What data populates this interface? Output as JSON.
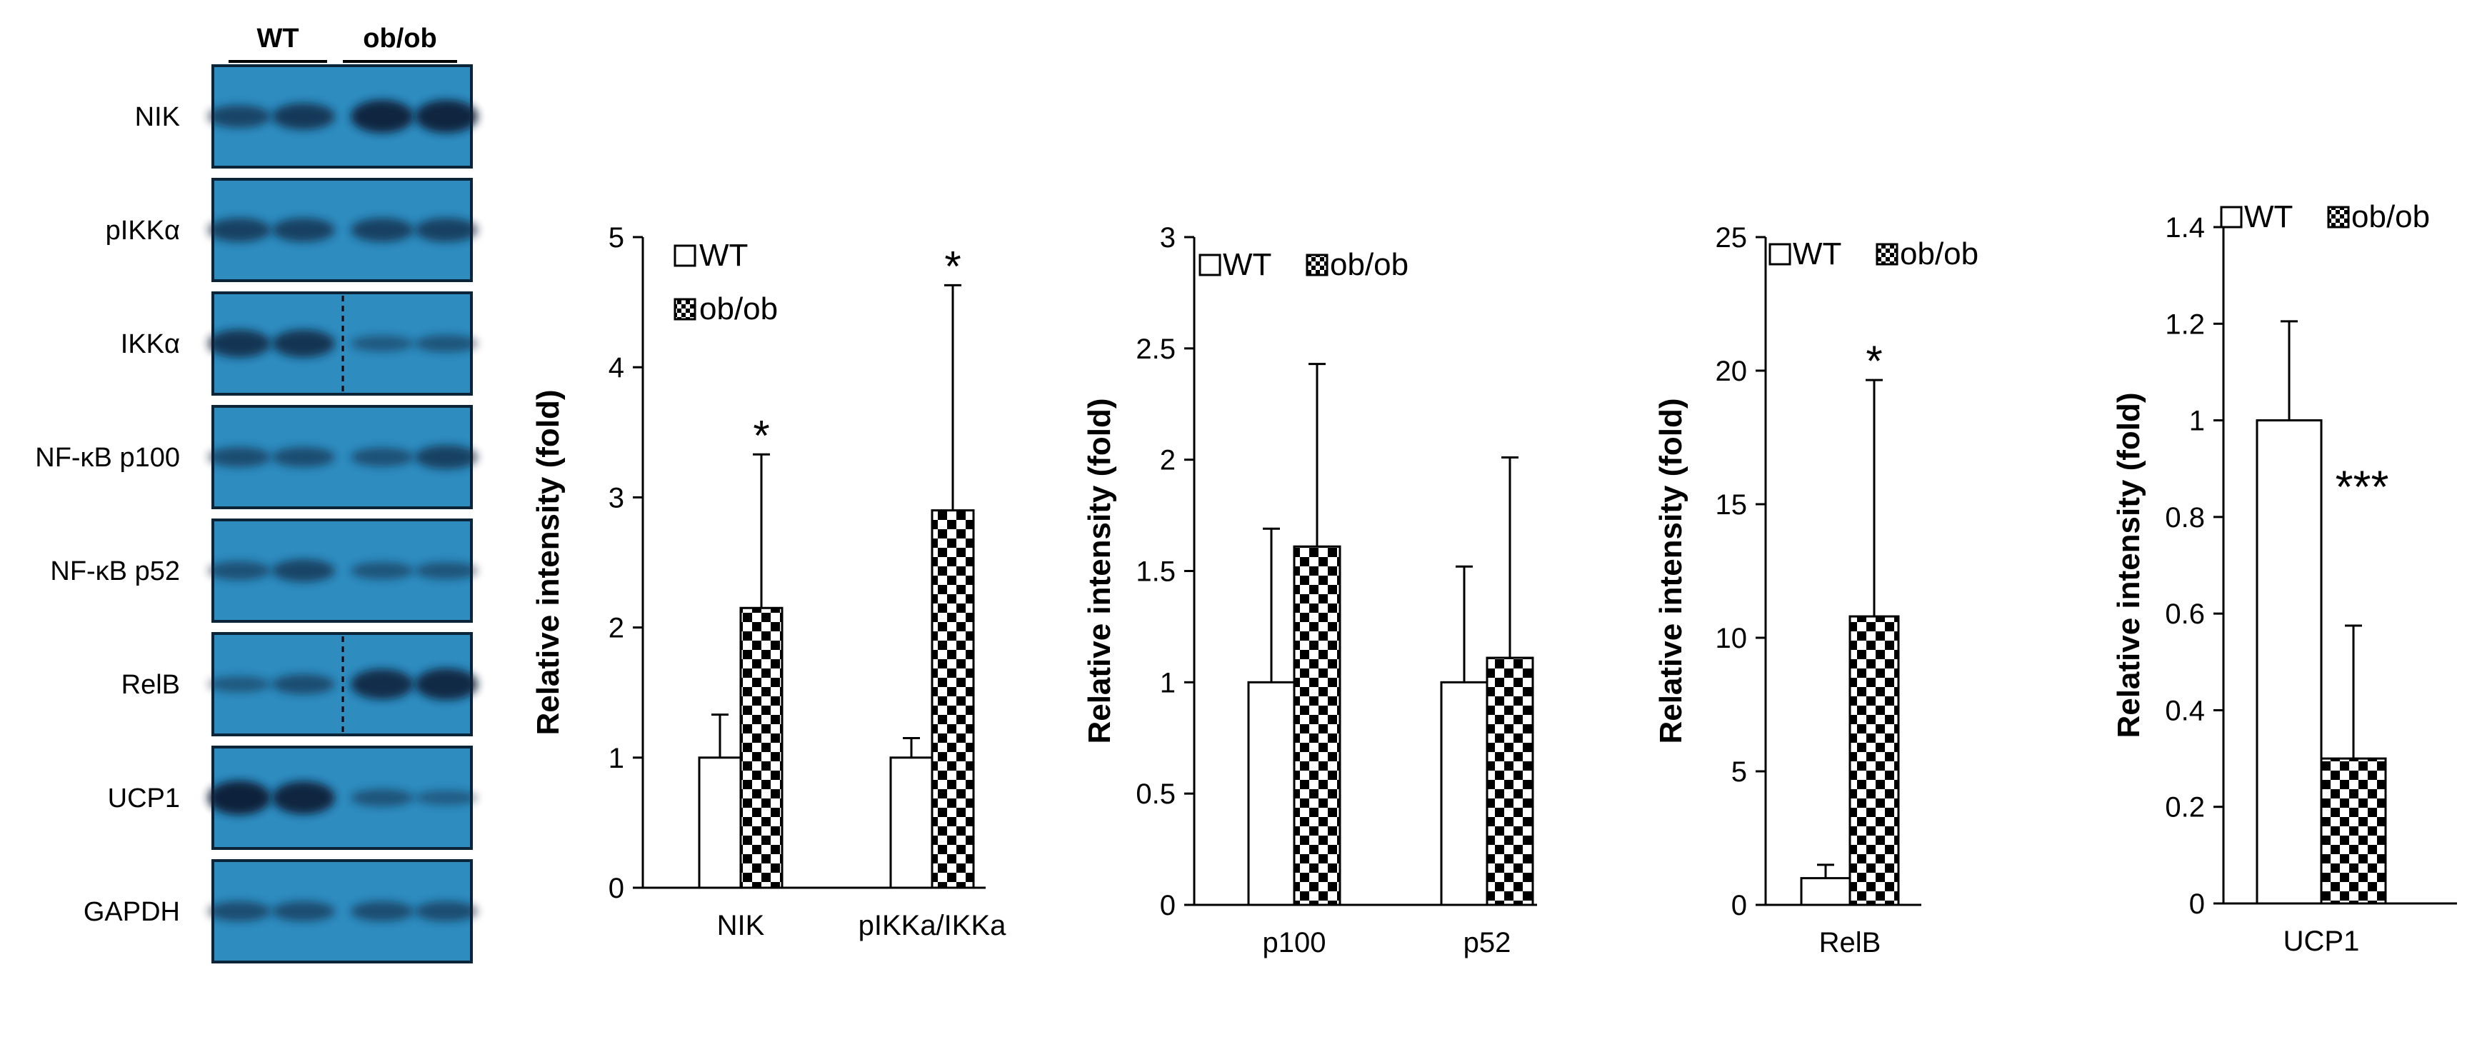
{
  "blot": {
    "groups": [
      "WT",
      "ob/ob"
    ],
    "rows": [
      {
        "label": "NIK",
        "bands": [
          0.55,
          0.7,
          0.95,
          0.95
        ],
        "dashed": false
      },
      {
        "label": "pIKKα",
        "bands": [
          0.6,
          0.6,
          0.6,
          0.6
        ],
        "dashed": false
      },
      {
        "label": "IKKα",
        "bands": [
          0.75,
          0.75,
          0.3,
          0.35
        ],
        "dashed": true
      },
      {
        "label": "NF-κB p100",
        "bands": [
          0.45,
          0.45,
          0.4,
          0.6
        ],
        "dashed": false
      },
      {
        "label": "NF-κB p52",
        "bands": [
          0.4,
          0.55,
          0.35,
          0.35
        ],
        "dashed": false
      },
      {
        "label": "RelB",
        "bands": [
          0.3,
          0.45,
          0.85,
          0.9
        ],
        "dashed": true
      },
      {
        "label": "UCP1",
        "bands": [
          1.0,
          0.95,
          0.35,
          0.25
        ],
        "dashed": false
      },
      {
        "label": "GAPDH",
        "bands": [
          0.45,
          0.45,
          0.45,
          0.45
        ],
        "dashed": false
      }
    ]
  },
  "colors": {
    "blot_bg": "#2e8cbf",
    "band": "#0a1f36",
    "wt_fill": "#ffffff",
    "obob_fill": "checkerboard"
  },
  "chart_data": [
    {
      "type": "bar",
      "categories": [
        "NIK",
        "pIKKa/IKKa"
      ],
      "series": [
        {
          "name": "WT",
          "values": [
            1.0,
            1.0
          ],
          "errors": [
            0.33,
            0.15
          ]
        },
        {
          "name": "ob/ob",
          "values": [
            2.15,
            2.9
          ],
          "errors": [
            1.18,
            1.73
          ]
        }
      ],
      "significance": [
        {
          "category": "NIK",
          "label": "*"
        },
        {
          "category": "pIKKa/IKKa",
          "label": "*"
        }
      ],
      "ylabel": "Relative intensity (fold)",
      "ylim": [
        0,
        5
      ],
      "yticks": [
        "0",
        "1",
        "2",
        "3",
        "4",
        "5"
      ],
      "legend": "stacked top-left"
    },
    {
      "type": "bar",
      "categories": [
        "p100",
        "p52"
      ],
      "series": [
        {
          "name": "WT",
          "values": [
            1.0,
            1.0
          ],
          "errors": [
            0.69,
            0.52
          ]
        },
        {
          "name": "ob/ob",
          "values": [
            1.61,
            1.11
          ],
          "errors": [
            0.82,
            0.9
          ]
        }
      ],
      "significance": [],
      "ylabel": "Relative intensity (fold)",
      "ylim": [
        0,
        3
      ],
      "yticks": [
        "0",
        "0.5",
        "1",
        "1.5",
        "2",
        "2.5",
        "3"
      ],
      "legend": "top"
    },
    {
      "type": "bar",
      "categories": [
        "RelB"
      ],
      "series": [
        {
          "name": "WT",
          "values": [
            1.0
          ],
          "errors": [
            0.5
          ]
        },
        {
          "name": "ob/ob",
          "values": [
            10.8
          ],
          "errors": [
            8.85
          ]
        }
      ],
      "significance": [
        {
          "category": "RelB",
          "label": "*"
        }
      ],
      "ylabel": "Relative intensity (fold)",
      "ylim": [
        0,
        25
      ],
      "yticks": [
        "0",
        "5",
        "10",
        "15",
        "20",
        "25"
      ],
      "legend": "top"
    },
    {
      "type": "bar",
      "categories": [
        "UCP1"
      ],
      "series": [
        {
          "name": "WT",
          "values": [
            1.0
          ],
          "errors": [
            0.205
          ]
        },
        {
          "name": "ob/ob",
          "values": [
            0.3
          ],
          "errors": [
            0.275
          ]
        }
      ],
      "significance": [
        {
          "category": "UCP1",
          "label": "***"
        }
      ],
      "ylabel": "Relative intensity (fold)",
      "ylim": [
        0,
        1.4
      ],
      "yticks": [
        "0",
        "0.2",
        "0.4",
        "0.6",
        "0.8",
        "1",
        "1.2",
        "1.4"
      ],
      "legend": "top"
    }
  ]
}
